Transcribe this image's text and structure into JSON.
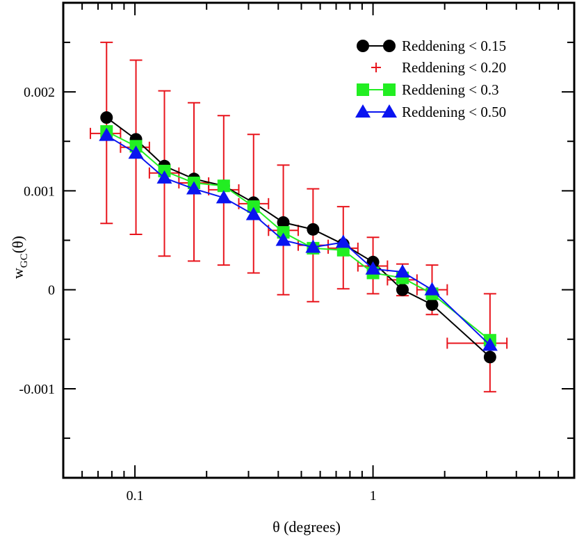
{
  "chart_data": {
    "type": "line",
    "title": "",
    "xlabel": "θ (degrees)",
    "ylabel_main": "w",
    "ylabel_sub": "GC",
    "ylabel_tail": "(θ)",
    "xscale": "log",
    "xlim": [
      0.05,
      7.0
    ],
    "ylim": [
      -0.0019,
      0.0029
    ],
    "grid": false,
    "legend_position": "top-right",
    "xticks": [
      {
        "value": 0.1,
        "label": "0.1"
      },
      {
        "value": 1,
        "label": "1"
      }
    ],
    "yticks": [
      {
        "value": -0.001,
        "label": "-0.001"
      },
      {
        "value": 0,
        "label": "0"
      },
      {
        "value": 0.001,
        "label": "0.001"
      },
      {
        "value": 0.002,
        "label": "0.002"
      }
    ],
    "series": [
      {
        "name": "Reddening < 0.15",
        "color": "#000000",
        "marker": "circle",
        "line": true,
        "x": [
          0.076,
          0.101,
          0.133,
          0.177,
          0.236,
          0.315,
          0.42,
          0.56,
          0.75,
          1.0,
          1.33,
          1.77,
          3.1
        ],
        "y": [
          0.00174,
          0.00152,
          0.00125,
          0.00112,
          0.00105,
          0.00088,
          0.00068,
          0.00061,
          0.00046,
          0.00028,
          0.0,
          -0.00015,
          -0.00068
        ]
      },
      {
        "name": "Reddening < 0.20",
        "color": "#e8141c",
        "marker": "plus",
        "line": false,
        "x": [
          0.076,
          0.101,
          0.133,
          0.177,
          0.236,
          0.315,
          0.42,
          0.56,
          0.75,
          1.0,
          1.33,
          1.77,
          3.1
        ],
        "y": [
          0.00158,
          0.00144,
          0.00118,
          0.00108,
          0.00101,
          0.00087,
          0.0006,
          0.00045,
          0.00042,
          0.00024,
          0.0001,
          0.0,
          -0.00054
        ],
        "yerr_low": [
          0.00067,
          0.00056,
          0.00034,
          0.00029,
          0.00025,
          0.00017,
          -5e-05,
          -0.00012,
          1e-05,
          -4e-05,
          -6e-05,
          -0.00025,
          -0.00103
        ],
        "yerr_high": [
          0.0025,
          0.00232,
          0.00201,
          0.00189,
          0.00176,
          0.00157,
          0.00126,
          0.00102,
          0.00084,
          0.00053,
          0.00026,
          0.00025,
          -4e-05
        ],
        "xerr_low": [
          0.065,
          0.087,
          0.115,
          0.153,
          0.204,
          0.273,
          0.364,
          0.485,
          0.648,
          0.864,
          1.15,
          1.53,
          2.05
        ],
        "xerr_high": [
          0.087,
          0.115,
          0.153,
          0.204,
          0.273,
          0.364,
          0.485,
          0.648,
          0.864,
          1.15,
          1.53,
          2.05,
          3.65
        ]
      },
      {
        "name": "Reddening < 0.3",
        "color": "#22ee22",
        "marker": "square",
        "line": true,
        "x": [
          0.076,
          0.101,
          0.133,
          0.177,
          0.236,
          0.315,
          0.42,
          0.56,
          0.75,
          1.0,
          1.33,
          1.77,
          3.1
        ],
        "y": [
          0.0016,
          0.00145,
          0.0012,
          0.00108,
          0.00105,
          0.00084,
          0.00058,
          0.00042,
          0.0004,
          0.00017,
          0.00012,
          -4e-05,
          -0.00051
        ]
      },
      {
        "name": "Reddening < 0.50",
        "color": "#0a14f0",
        "marker": "triangle",
        "line": true,
        "x": [
          0.076,
          0.101,
          0.133,
          0.177,
          0.236,
          0.315,
          0.42,
          0.56,
          0.75,
          1.0,
          1.33,
          1.77,
          3.1
        ],
        "y": [
          0.00156,
          0.00138,
          0.00113,
          0.00102,
          0.00093,
          0.00076,
          0.0005,
          0.00043,
          0.00048,
          0.00021,
          0.00018,
          0.0,
          -0.00056
        ]
      }
    ]
  }
}
